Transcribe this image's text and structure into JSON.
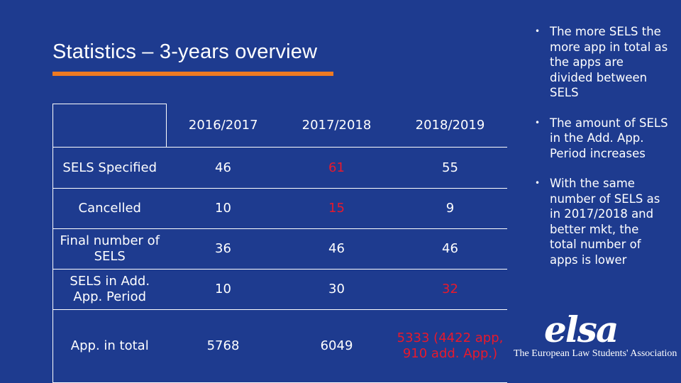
{
  "slide": {
    "title": "Statistics – 3-years overview"
  },
  "table": {
    "headers": [
      "",
      "2016/2017",
      "2017/2018",
      "2018/2019"
    ],
    "rows": [
      {
        "label": "SELS Specified",
        "cells": [
          "46",
          "61",
          "55"
        ],
        "highlight": [
          false,
          true,
          false
        ]
      },
      {
        "label": "Cancelled",
        "cells": [
          "10",
          "15",
          "9"
        ],
        "highlight": [
          false,
          true,
          false
        ]
      },
      {
        "label": "Final number of SELS",
        "cells": [
          "36",
          "46",
          "46"
        ],
        "highlight": [
          false,
          false,
          false
        ]
      },
      {
        "label": "SELS in Add. App. Period",
        "cells": [
          "10",
          "30",
          "32"
        ],
        "highlight": [
          false,
          false,
          true
        ]
      },
      {
        "label": "App. in total",
        "cells": [
          "5768",
          "6049",
          "5333 (4422 app, 910 add. App.)"
        ],
        "highlight": [
          false,
          false,
          true
        ]
      }
    ],
    "highlight_color": "#e8192c"
  },
  "bullets": [
    "The more SELS the more app in total as the apps are divided between SELS",
    "The amount of SELS in the Add. App. Period increases",
    "With the same number of SELS as in 2017/2018 and better mkt, the total number of apps is lower"
  ],
  "logo": {
    "word": "elsa",
    "subtitle": "The European Law Students' Association"
  },
  "colors": {
    "background": "#1e3b8f",
    "accent": "#ee7a22",
    "text": "#ffffff"
  }
}
